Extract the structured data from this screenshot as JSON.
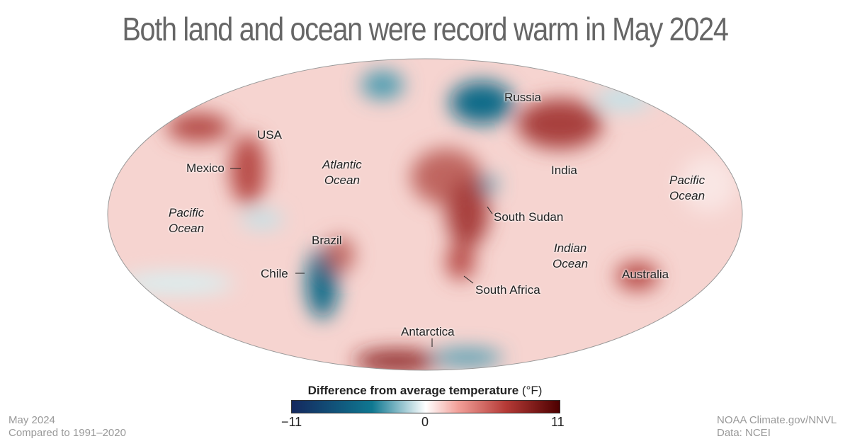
{
  "title": "Both land and ocean were record warm in May 2024",
  "labels": {
    "russia": "Russia",
    "usa": "USA",
    "mexico": "Mexico",
    "india": "India",
    "atlantic_1": "Atlantic",
    "atlantic_2": "Ocean",
    "pacific_w_1": "Pacific",
    "pacific_w_2": "Ocean",
    "pacific_e_1": "Pacific",
    "pacific_e_2": "Ocean",
    "indian_1": "Indian",
    "indian_2": "Ocean",
    "south_sudan": "South Sudan",
    "brazil": "Brazil",
    "chile": "Chile",
    "south_africa": "South Africa",
    "australia": "Australia",
    "antarctica": "Antarctica"
  },
  "legend": {
    "title": "Difference from average temperature",
    "unit": "(°F)",
    "min": "−11",
    "mid": "0",
    "max": "11",
    "colors": {
      "cold": "#14285e",
      "cool": "#0f7891",
      "neutral": "#ffffff",
      "warm": "#b53a36",
      "hot": "#4d0000"
    }
  },
  "footer": {
    "left_1": "May 2024",
    "left_2": "Compared to 1991–2020",
    "right_1": "NOAA Climate.gov/NNVL",
    "right_2": "Data: NCEI"
  }
}
